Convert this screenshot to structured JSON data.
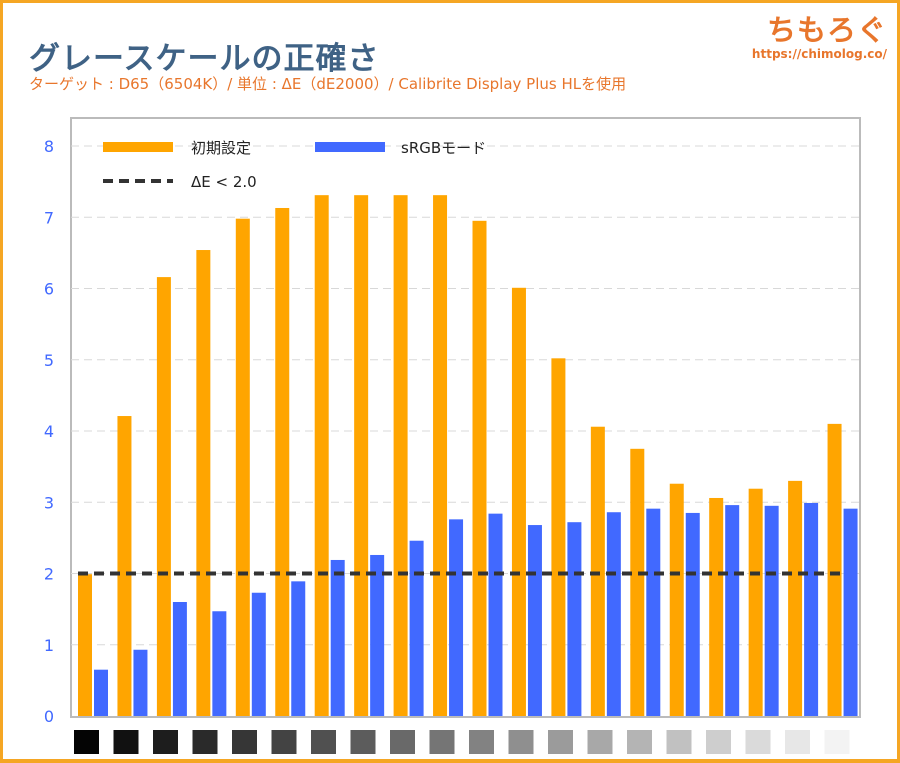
{
  "header": {
    "title": "グレースケールの正確さ",
    "subtitle": "ターゲット : D65（6504K）/ 単位 : ΔE（dE2000）/ Calibrite Display Plus HLを使用"
  },
  "logo": {
    "name": "ちもろぐ",
    "url": "https://chimolog.co/"
  },
  "chart_data": {
    "type": "bar",
    "title": "グレースケールの正確さ",
    "ylim": [
      0,
      8
    ],
    "yticks": [
      "0",
      "1",
      "2",
      "3",
      "4",
      "5",
      "6",
      "7",
      "8"
    ],
    "grid": true,
    "legend": "top-left",
    "categories_note": "",
    "gray_levels": [
      0,
      5,
      10,
      15,
      20,
      25,
      30,
      35,
      40,
      45,
      50,
      55,
      60,
      65,
      70,
      75,
      80,
      85,
      90,
      95
    ],
    "series": [
      {
        "name": "初期設定",
        "color": "#ffa500",
        "values": [
          1.99,
          4.21,
          6.16,
          6.54,
          6.98,
          7.13,
          7.31,
          7.31,
          7.31,
          7.31,
          6.95,
          6.01,
          5.02,
          4.06,
          3.75,
          3.26,
          3.06,
          3.19,
          3.3,
          4.1
        ]
      },
      {
        "name": "sRGBモード",
        "color": "#4169ff",
        "values": [
          0.65,
          0.93,
          1.6,
          1.47,
          1.73,
          1.89,
          2.19,
          2.26,
          2.46,
          2.76,
          2.84,
          2.68,
          2.72,
          2.86,
          2.91,
          2.85,
          2.96,
          2.95,
          2.99,
          2.91
        ]
      }
    ],
    "reference_line": {
      "name": "ΔE < 2.0",
      "value": 2.0,
      "color": "#333333"
    }
  }
}
